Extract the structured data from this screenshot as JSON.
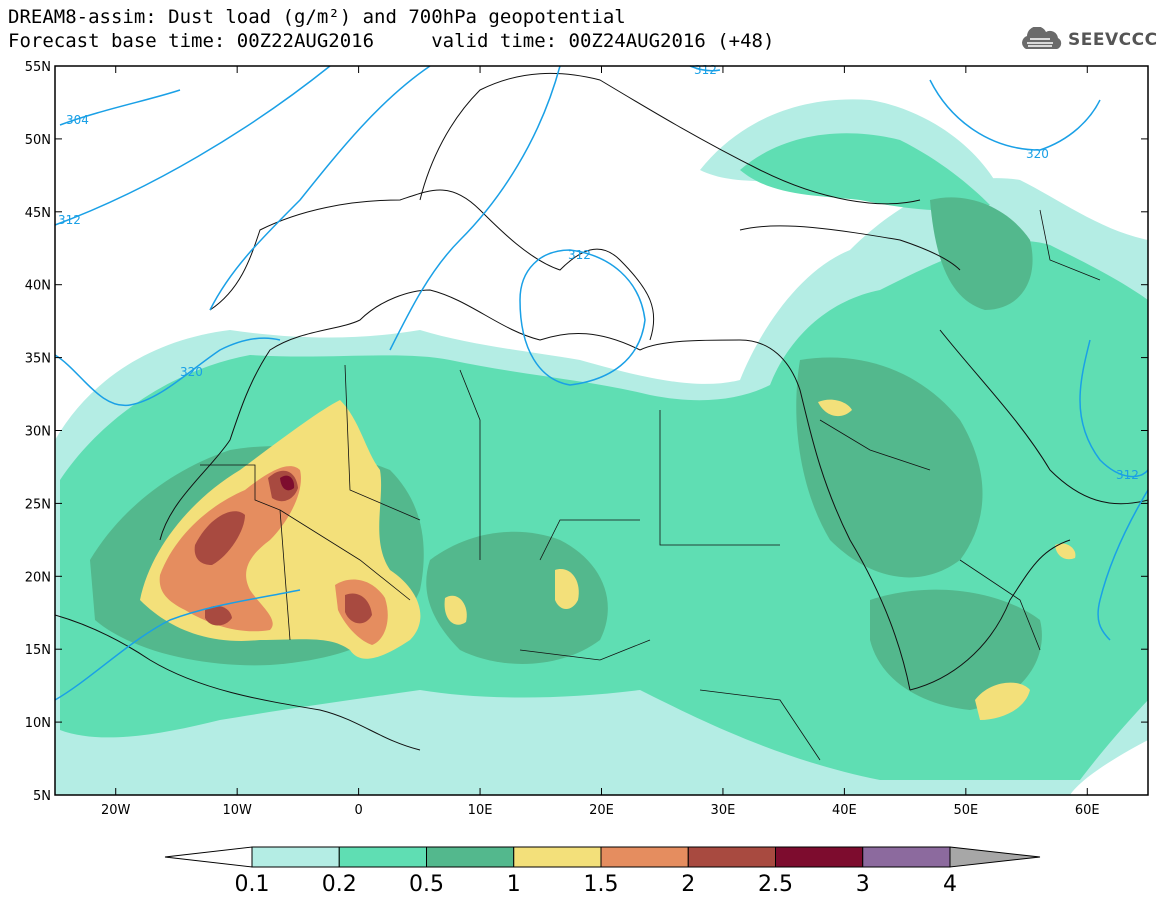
{
  "title": {
    "line1": "DREAM8-assim: Dust load (g/m²) and 700hPa geopotential",
    "line2": "Forecast base time: 00Z22AUG2016     valid time: 00Z24AUG2016 (+48)"
  },
  "logo": {
    "text": "SEEVCCC",
    "icon": "cloud-icon"
  },
  "map": {
    "projection": "lat-lon",
    "lon_range": [
      -25,
      65
    ],
    "lat_range": [
      5,
      55
    ],
    "lat_ticks": [
      "55N",
      "50N",
      "45N",
      "40N",
      "35N",
      "30N",
      "25N",
      "20N",
      "15N",
      "10N",
      "5N"
    ],
    "lon_ticks": [
      "20W",
      "10W",
      "0",
      "10E",
      "20E",
      "30E",
      "40E",
      "50E",
      "60E"
    ],
    "contour_labels": [
      "304",
      "312",
      "320",
      "312",
      "312",
      "320",
      "312"
    ]
  },
  "colorbar": {
    "labels": [
      "0.1",
      "0.2",
      "0.5",
      "1",
      "1.5",
      "2",
      "2.5",
      "3",
      "4"
    ],
    "colors": [
      "#b4ede4",
      "#5fdeb3",
      "#53b88d",
      "#f3e07a",
      "#e58d5f",
      "#a84a40",
      "#7d0c2e",
      "#8c6a9e"
    ],
    "under_color": "#ffffff",
    "over_color": "#a7a7a7"
  }
}
